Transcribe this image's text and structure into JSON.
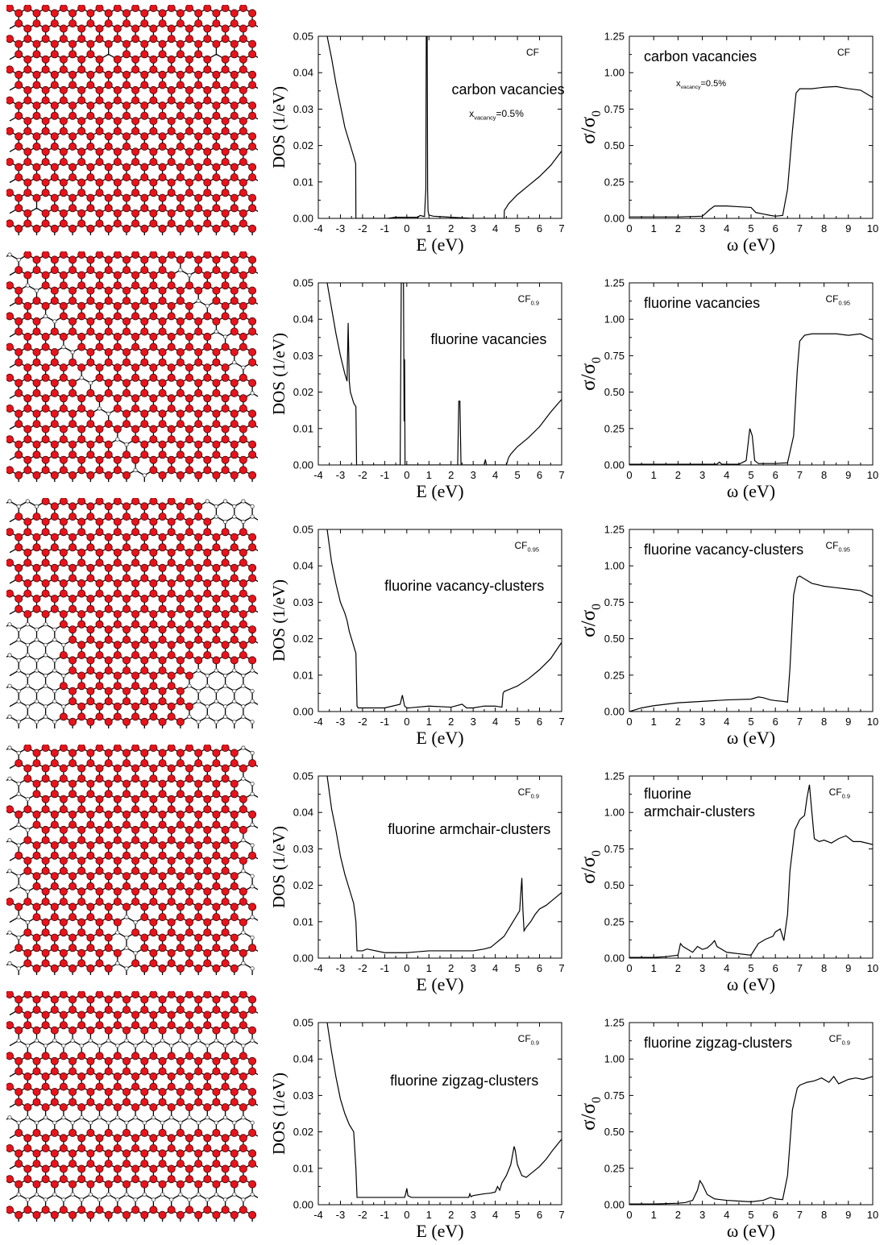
{
  "colors": {
    "atom": "#e8131b",
    "atom_stroke": "#4a0000",
    "bond": "#000000",
    "line": "#000000"
  },
  "dos_axis": {
    "xlabel": "E (eV)",
    "ylabel": "DOS (1/eV)",
    "xlim": [
      -4,
      7
    ],
    "ylim": [
      0,
      0.05
    ],
    "xticks": [
      "-4",
      "-3",
      "-2",
      "-1",
      "0",
      "1",
      "2",
      "3",
      "4",
      "5",
      "6",
      "7"
    ],
    "yticks": [
      "0.00",
      "0.01",
      "0.02",
      "0.03",
      "0.04",
      "0.05"
    ]
  },
  "cond_axis": {
    "xlabel": "ω (eV)",
    "ylabel_main": "σ/σ",
    "ylabel_sub": "0",
    "xlim": [
      0,
      10
    ],
    "ylim": [
      0,
      1.25
    ],
    "xticks": [
      "0",
      "1",
      "2",
      "3",
      "4",
      "5",
      "6",
      "7",
      "8",
      "9",
      "10"
    ],
    "yticks": [
      "0.00",
      "0.25",
      "0.50",
      "0.75",
      "1.00",
      "1.25"
    ]
  },
  "chart_data": [
    {
      "row": 1,
      "type": "line",
      "panel": "dos",
      "label": "carbon vacancies",
      "formula": "CF",
      "formula_sub": "",
      "note": "x",
      "note_sub": "vacancy",
      "note_tail": "=0.5%",
      "x": [
        -3.6,
        -3.4,
        -3.2,
        -3.0,
        -2.8,
        -2.6,
        -2.5,
        -2.4,
        -2.31,
        -2.3,
        -2.25,
        -0.9,
        -0.5,
        0.5,
        0.6,
        0.8,
        0.86,
        0.88,
        0.9,
        0.92,
        0.94,
        0.96,
        1.0,
        1.2,
        1.5,
        2.0,
        3.0,
        4.0,
        4.4,
        4.41,
        4.5,
        4.6,
        5.0,
        5.5,
        6.0,
        6.5,
        7.0
      ],
      "y": [
        0.05,
        0.044,
        0.037,
        0.031,
        0.025,
        0.021,
        0.019,
        0.017,
        0.015,
        0.0,
        0.0,
        0.0,
        0.0003,
        0.0003,
        0.0008,
        0.0005,
        0.008,
        0.05,
        0.05,
        0.05,
        0.008,
        0.002,
        0.0009,
        0.0006,
        0.0005,
        0.0003,
        0.0,
        0.0,
        0.0,
        0.0022,
        0.003,
        0.004,
        0.0065,
        0.009,
        0.0115,
        0.0145,
        0.0185
      ]
    },
    {
      "row": 1,
      "type": "line",
      "panel": "cond",
      "label": "carbon vacancies",
      "formula": "CF",
      "formula_sub": "",
      "note": "x",
      "note_sub": "vacancy",
      "note_tail": "=0.5%",
      "x": [
        0,
        1,
        2,
        3,
        3.3,
        3.5,
        4,
        4.5,
        5,
        5.2,
        5.5,
        5.8,
        6.0,
        6.3,
        6.5,
        6.7,
        6.85,
        7.0,
        7.5,
        8,
        8.5,
        9,
        9.5,
        10
      ],
      "y": [
        0.01,
        0.01,
        0.01,
        0.015,
        0.06,
        0.085,
        0.085,
        0.08,
        0.075,
        0.04,
        0.03,
        0.02,
        0.015,
        0.02,
        0.2,
        0.6,
        0.86,
        0.89,
        0.89,
        0.9,
        0.905,
        0.89,
        0.88,
        0.83
      ]
    },
    {
      "row": 2,
      "type": "line",
      "panel": "dos",
      "label": "fluorine vacancies",
      "formula": "CF",
      "formula_sub": "0.9",
      "note": "",
      "note_sub": "",
      "note_tail": "",
      "x": [
        -3.6,
        -3.4,
        -3.2,
        -3.0,
        -2.8,
        -2.7,
        -2.65,
        -2.6,
        -2.55,
        -2.5,
        -2.4,
        -2.3,
        -2.27,
        -2.2,
        -0.4,
        -0.3,
        -0.25,
        -0.2,
        -0.15,
        -0.12,
        -0.1,
        -0.08,
        -0.05,
        0,
        0.2,
        2.3,
        2.35,
        2.4,
        2.45,
        2.5,
        3.5,
        3.55,
        3.6,
        4.5,
        4.6,
        4.7,
        5.0,
        5.5,
        6.0,
        6.5,
        7.0
      ],
      "y": [
        0.05,
        0.043,
        0.036,
        0.03,
        0.025,
        0.023,
        0.039,
        0.023,
        0.02,
        0.019,
        0.017,
        0.016,
        0.0,
        0.0,
        0.0,
        0.0,
        0.05,
        0.05,
        0.05,
        0.012,
        0.029,
        0.0,
        0.0,
        0.0,
        0.0,
        0.0,
        0.0175,
        0.0175,
        0.0,
        0.0,
        0.0,
        0.0015,
        0.0,
        0.0,
        0.002,
        0.003,
        0.005,
        0.0075,
        0.0105,
        0.0145,
        0.018
      ]
    },
    {
      "row": 2,
      "type": "line",
      "panel": "cond",
      "label": "fluorine vacancies",
      "formula": "CF",
      "formula_sub": "0.95",
      "note": "",
      "note_sub": "",
      "note_tail": "",
      "x": [
        0,
        1,
        2,
        3,
        3.6,
        3.7,
        3.8,
        4.0,
        4.5,
        4.8,
        4.95,
        5.05,
        5.15,
        5.3,
        5.5,
        6.0,
        6.5,
        6.75,
        6.9,
        7.0,
        7.2,
        7.5,
        8,
        8.5,
        9,
        9.5,
        10
      ],
      "y": [
        0.005,
        0.005,
        0.005,
        0.005,
        0.005,
        0.02,
        0.005,
        0.005,
        0.005,
        0.03,
        0.25,
        0.2,
        0.03,
        0.01,
        0.01,
        0.01,
        0.015,
        0.2,
        0.65,
        0.85,
        0.89,
        0.9,
        0.9,
        0.9,
        0.89,
        0.9,
        0.86
      ]
    },
    {
      "row": 3,
      "type": "line",
      "panel": "dos",
      "label": "fluorine vacancy-clusters",
      "formula": "CF",
      "formula_sub": "0.95",
      "note": "",
      "note_sub": "",
      "note_tail": "",
      "x": [
        -3.6,
        -3.4,
        -3.2,
        -3.0,
        -2.8,
        -2.7,
        -2.6,
        -2.5,
        -2.4,
        -2.3,
        -2.25,
        -2.2,
        -1.0,
        -0.3,
        -0.2,
        -0.15,
        -0.1,
        0.0,
        0.1,
        1.0,
        2.0,
        2.5,
        2.7,
        3.0,
        3.5,
        4.0,
        4.3,
        4.35,
        4.4,
        5.0,
        5.5,
        6.0,
        6.5,
        7.0
      ],
      "y": [
        0.05,
        0.041,
        0.035,
        0.03,
        0.027,
        0.025,
        0.022,
        0.02,
        0.018,
        0.016,
        0.0015,
        0.001,
        0.001,
        0.002,
        0.0045,
        0.003,
        0.0015,
        0.001,
        0.001,
        0.0015,
        0.0012,
        0.002,
        0.001,
        0.001,
        0.0015,
        0.0015,
        0.0012,
        0.005,
        0.0055,
        0.007,
        0.009,
        0.0115,
        0.0145,
        0.019
      ]
    },
    {
      "row": 3,
      "type": "line",
      "panel": "cond",
      "label": "fluorine vacancy-clusters",
      "formula": "CF",
      "formula_sub": "0.95",
      "note": "",
      "note_sub": "",
      "note_tail": "",
      "x": [
        0,
        0.5,
        1,
        2,
        3,
        4,
        5,
        5.3,
        5.5,
        5.8,
        6.0,
        6.3,
        6.5,
        6.6,
        6.75,
        6.9,
        7.0,
        7.2,
        7.5,
        8,
        8.5,
        9,
        9.5,
        10
      ],
      "y": [
        0.0,
        0.025,
        0.04,
        0.06,
        0.07,
        0.08,
        0.085,
        0.1,
        0.095,
        0.08,
        0.075,
        0.07,
        0.065,
        0.3,
        0.8,
        0.92,
        0.93,
        0.91,
        0.88,
        0.86,
        0.85,
        0.84,
        0.83,
        0.79
      ]
    },
    {
      "row": 4,
      "type": "line",
      "panel": "dos",
      "label": "fluorine armchair-clusters",
      "formula": "CF",
      "formula_sub": "0.9",
      "note": "",
      "note_sub": "",
      "note_tail": "",
      "x": [
        -3.6,
        -3.4,
        -3.2,
        -3.0,
        -2.8,
        -2.6,
        -2.4,
        -2.3,
        -2.25,
        -2.2,
        -2.0,
        -1.8,
        -1.0,
        0,
        1,
        2,
        3,
        3.5,
        3.8,
        4.0,
        4.2,
        4.4,
        4.6,
        4.8,
        5.0,
        5.1,
        5.2,
        5.25,
        5.3,
        5.4,
        5.6,
        5.8,
        6.0,
        6.3,
        6.6,
        6.8,
        7.0
      ],
      "y": [
        0.05,
        0.041,
        0.035,
        0.028,
        0.023,
        0.019,
        0.015,
        0.01,
        0.002,
        0.002,
        0.002,
        0.0025,
        0.0015,
        0.0015,
        0.002,
        0.002,
        0.002,
        0.0025,
        0.003,
        0.004,
        0.005,
        0.006,
        0.008,
        0.01,
        0.012,
        0.013,
        0.022,
        0.013,
        0.0075,
        0.0085,
        0.01,
        0.012,
        0.0135,
        0.0145,
        0.016,
        0.017,
        0.018
      ]
    },
    {
      "row": 4,
      "type": "line",
      "panel": "cond",
      "label": "fluorine armchair-clusters",
      "label_lines": [
        "fluorine",
        "armchair-clusters"
      ],
      "formula": "CF",
      "formula_sub": "0.9",
      "note": "",
      "note_sub": "",
      "note_tail": "",
      "x": [
        0,
        1,
        1.5,
        2.0,
        2.1,
        2.2,
        2.4,
        2.6,
        2.8,
        3.0,
        3.2,
        3.4,
        3.5,
        3.6,
        3.8,
        4.0,
        4.5,
        5.0,
        5.3,
        5.6,
        5.9,
        6.0,
        6.2,
        6.35,
        6.5,
        6.6,
        6.8,
        7.0,
        7.2,
        7.3,
        7.4,
        7.5,
        7.6,
        7.8,
        8.0,
        8.3,
        8.6,
        8.9,
        9.2,
        9.5,
        10
      ],
      "y": [
        0.005,
        0.005,
        0.01,
        0.02,
        0.1,
        0.08,
        0.06,
        0.04,
        0.08,
        0.06,
        0.07,
        0.1,
        0.12,
        0.08,
        0.06,
        0.04,
        0.03,
        0.02,
        0.1,
        0.13,
        0.15,
        0.18,
        0.2,
        0.12,
        0.3,
        0.6,
        0.88,
        0.95,
        0.98,
        1.1,
        1.19,
        1.0,
        0.82,
        0.8,
        0.81,
        0.79,
        0.82,
        0.84,
        0.8,
        0.8,
        0.78
      ]
    },
    {
      "row": 5,
      "type": "line",
      "panel": "dos",
      "label": "fluorine zigzag-clusters",
      "formula": "CF",
      "formula_sub": "0.9",
      "note": "",
      "note_sub": "",
      "note_tail": "",
      "x": [
        -3.6,
        -3.4,
        -3.2,
        -3.0,
        -2.8,
        -2.6,
        -2.4,
        -2.3,
        -2.25,
        -2.2,
        -1.0,
        -0.1,
        -0.05,
        0.0,
        0.05,
        0.2,
        1.0,
        2.0,
        2.8,
        2.85,
        2.9,
        3.0,
        3.5,
        3.8,
        4.0,
        4.1,
        4.2,
        4.3,
        4.5,
        4.7,
        4.85,
        4.9,
        5.0,
        5.2,
        5.4,
        5.7,
        6.0,
        6.3,
        6.6,
        7.0
      ],
      "y": [
        0.05,
        0.042,
        0.035,
        0.029,
        0.025,
        0.022,
        0.02,
        0.01,
        0.002,
        0.002,
        0.002,
        0.002,
        0.003,
        0.0045,
        0.0025,
        0.002,
        0.002,
        0.002,
        0.002,
        0.003,
        0.0022,
        0.0025,
        0.003,
        0.0032,
        0.0035,
        0.005,
        0.004,
        0.006,
        0.008,
        0.011,
        0.016,
        0.015,
        0.011,
        0.008,
        0.0075,
        0.009,
        0.0105,
        0.0125,
        0.015,
        0.018
      ]
    },
    {
      "row": 5,
      "type": "line",
      "panel": "cond",
      "label": "fluorine zigzag-clusters",
      "formula": "CF",
      "formula_sub": "0.9",
      "note": "",
      "note_sub": "",
      "note_tail": "",
      "x": [
        0,
        1,
        2,
        2.3,
        2.6,
        2.8,
        2.9,
        3.0,
        3.2,
        3.5,
        4.0,
        4.5,
        5.0,
        5.5,
        5.8,
        6.0,
        6.3,
        6.5,
        6.7,
        6.9,
        7.0,
        7.3,
        7.6,
        7.9,
        8.2,
        8.4,
        8.6,
        9.0,
        9.3,
        9.6,
        10
      ],
      "y": [
        0.005,
        0.005,
        0.01,
        0.015,
        0.03,
        0.1,
        0.165,
        0.14,
        0.07,
        0.04,
        0.03,
        0.025,
        0.02,
        0.03,
        0.05,
        0.04,
        0.035,
        0.2,
        0.65,
        0.8,
        0.82,
        0.84,
        0.85,
        0.87,
        0.84,
        0.88,
        0.83,
        0.86,
        0.87,
        0.86,
        0.88
      ]
    }
  ]
}
